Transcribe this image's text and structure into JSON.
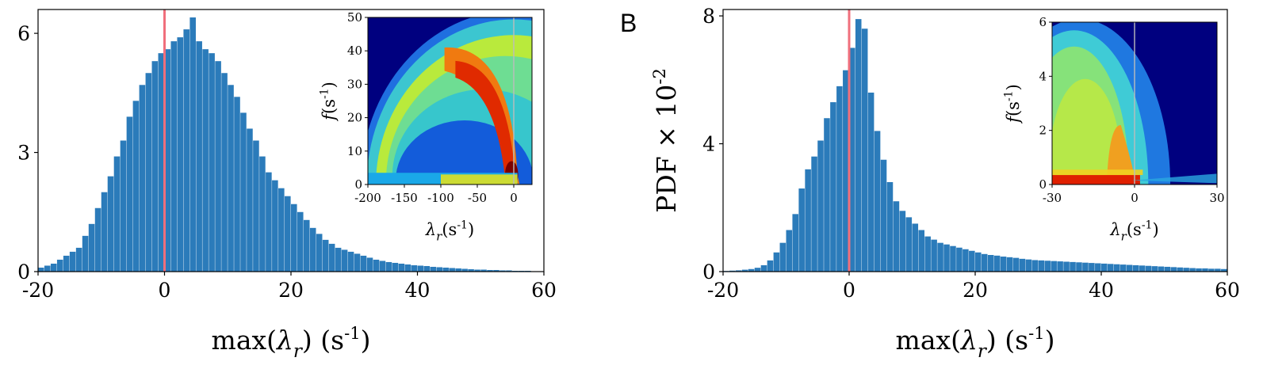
{
  "colors": {
    "bar": "#2b7bba",
    "marker": "#f06f7c",
    "heat_bg": "#00007f"
  },
  "panel_letters": [
    "",
    "B"
  ],
  "chart_data": [
    {
      "type": "bar",
      "bins_start": -20,
      "bin_width": 1,
      "values": [
        0.1,
        0.15,
        0.2,
        0.3,
        0.4,
        0.5,
        0.6,
        0.9,
        1.2,
        1.6,
        2.0,
        2.4,
        2.9,
        3.3,
        3.9,
        4.3,
        4.7,
        5.0,
        5.3,
        5.5,
        5.6,
        5.8,
        5.9,
        6.1,
        6.4,
        5.8,
        5.6,
        5.5,
        5.3,
        5.0,
        4.7,
        4.4,
        4.0,
        3.6,
        3.3,
        2.9,
        2.5,
        2.3,
        2.1,
        1.9,
        1.7,
        1.5,
        1.3,
        1.1,
        0.95,
        0.8,
        0.7,
        0.6,
        0.55,
        0.5,
        0.45,
        0.4,
        0.35,
        0.3,
        0.27,
        0.24,
        0.22,
        0.2,
        0.18,
        0.16,
        0.15,
        0.14,
        0.12,
        0.11,
        0.1,
        0.09,
        0.08,
        0.07,
        0.06,
        0.05,
        0.05,
        0.04,
        0.04,
        0.03,
        0.03,
        0.02,
        0.02,
        0.02,
        0.01,
        0.01
      ],
      "xlim": [
        -20,
        60
      ],
      "ylim": [
        0,
        6.6
      ],
      "xticks": [
        "-20",
        "0",
        "20",
        "40",
        "60"
      ],
      "xtick_values": [
        -20,
        0,
        20,
        40,
        60
      ],
      "yticks": [
        "0",
        "3",
        "6"
      ],
      "ytick_values": [
        0,
        3,
        6
      ],
      "xlabel": "max(λ_r)  (s-1)",
      "ylabel": "",
      "vline": 0,
      "inset": {
        "type": "heatmap",
        "xlim": [
          -200,
          25
        ],
        "ylim": [
          0,
          50
        ],
        "xticks": [
          "-200",
          "-150",
          "-100",
          "-50",
          "0"
        ],
        "xtick_values": [
          -200,
          -150,
          -100,
          -50,
          0
        ],
        "yticks": [
          "0",
          "10",
          "20",
          "30",
          "40",
          "50"
        ],
        "ytick_values": [
          0,
          10,
          20,
          30,
          40,
          50
        ],
        "xlabel": "λ_r(s-1)",
        "ylabel": "f(s-1)",
        "vline": 0
      }
    },
    {
      "type": "bar",
      "bins_start": -20,
      "bin_width": 1,
      "values": [
        0.02,
        0.03,
        0.04,
        0.06,
        0.08,
        0.12,
        0.2,
        0.35,
        0.6,
        0.9,
        1.3,
        1.8,
        2.6,
        3.2,
        3.6,
        4.1,
        4.8,
        5.3,
        5.8,
        6.3,
        7.0,
        7.9,
        7.6,
        5.6,
        4.4,
        3.5,
        2.8,
        2.2,
        1.9,
        1.7,
        1.5,
        1.3,
        1.1,
        1.0,
        0.9,
        0.85,
        0.8,
        0.75,
        0.7,
        0.65,
        0.6,
        0.55,
        0.52,
        0.5,
        0.47,
        0.45,
        0.43,
        0.4,
        0.38,
        0.36,
        0.35,
        0.34,
        0.33,
        0.32,
        0.31,
        0.3,
        0.29,
        0.28,
        0.27,
        0.26,
        0.25,
        0.24,
        0.23,
        0.22,
        0.21,
        0.2,
        0.19,
        0.18,
        0.17,
        0.16,
        0.15,
        0.14,
        0.13,
        0.12,
        0.11,
        0.1,
        0.1,
        0.09,
        0.09,
        0.08
      ],
      "xlim": [
        -20,
        60
      ],
      "ylim": [
        0,
        8.2
      ],
      "xticks": [
        "-20",
        "0",
        "20",
        "40",
        "60"
      ],
      "xtick_values": [
        -20,
        0,
        20,
        40,
        60
      ],
      "yticks": [
        "0",
        "4",
        "8"
      ],
      "ytick_values": [
        0,
        4,
        8
      ],
      "xlabel": "max(λ_r)  (s-1)",
      "ylabel": "PDF × 10-2",
      "vline": 0,
      "inset": {
        "type": "heatmap",
        "xlim": [
          -30,
          30
        ],
        "ylim": [
          0,
          6
        ],
        "xticks": [
          "-30",
          "0",
          "30"
        ],
        "xtick_values": [
          -30,
          0,
          30
        ],
        "yticks": [
          "0",
          "2",
          "4",
          "6"
        ],
        "ytick_values": [
          0,
          2,
          4,
          6
        ],
        "xlabel": "λ_r(s-1)",
        "ylabel": "f(s-1)",
        "vline": 0
      }
    }
  ]
}
